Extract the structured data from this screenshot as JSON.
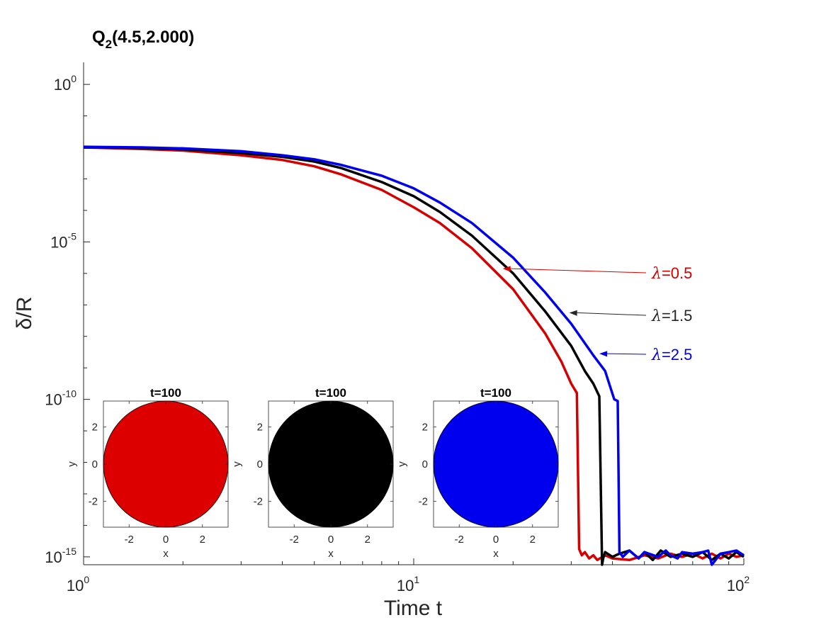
{
  "chart_data": {
    "type": "line",
    "title": "Q",
    "title_sub": "2",
    "title_rest": "(4.5,2.000)",
    "xlabel": "Time t",
    "ylabel": "δ/R",
    "xscale": "log",
    "yscale": "log",
    "xlim": [
      1,
      100
    ],
    "ylim_exp": [
      -15.25,
      0.7
    ],
    "x_ticks": [
      {
        "base": "10",
        "exp": "0",
        "value": 1
      },
      {
        "base": "10",
        "exp": "1",
        "value": 10
      },
      {
        "base": "10",
        "exp": "2",
        "value": 100
      }
    ],
    "y_ticks": [
      {
        "base": "10",
        "exp": "0",
        "value": 0
      },
      {
        "base": "10",
        "exp": "-5",
        "value": -5
      },
      {
        "base": "10",
        "exp": "-10",
        "value": -10
      },
      {
        "base": "10",
        "exp": "-15",
        "value": -15
      }
    ],
    "series": [
      {
        "name": "λ=0.5",
        "color": "#d40000",
        "x": [
          1,
          1.5,
          2,
          3,
          4,
          5,
          6,
          8,
          10,
          12,
          15,
          20,
          25,
          28,
          30,
          31.2,
          31.7,
          32.3,
          33,
          34,
          35,
          36,
          38,
          40,
          45,
          50,
          55,
          60,
          65,
          70,
          75,
          80,
          85,
          90,
          95,
          100
        ],
        "log10y": [
          -2.0,
          -2.05,
          -2.1,
          -2.25,
          -2.4,
          -2.6,
          -2.85,
          -3.35,
          -3.9,
          -4.4,
          -5.2,
          -6.5,
          -7.9,
          -8.8,
          -9.5,
          -9.8,
          -14.75,
          -14.95,
          -14.85,
          -15.05,
          -14.95,
          -15.1,
          -14.95,
          -15.05,
          -15.1,
          -14.95,
          -15.05,
          -14.9,
          -15.0,
          -14.9,
          -15.05,
          -14.9,
          -15.05,
          -14.9,
          -15.0,
          -14.95
        ]
      },
      {
        "name": "λ=1.5",
        "color": "#000000",
        "x": [
          1,
          1.5,
          2,
          3,
          4,
          5,
          6,
          8,
          10,
          12,
          15,
          20,
          25,
          30,
          33,
          35,
          36.5,
          37.2,
          37.5,
          38,
          40,
          42,
          45,
          48,
          50,
          53,
          56,
          60,
          65,
          70,
          75,
          80,
          85,
          90,
          95,
          100
        ],
        "log10y": [
          -2.0,
          -2.02,
          -2.06,
          -2.18,
          -2.3,
          -2.45,
          -2.65,
          -3.1,
          -3.55,
          -4.05,
          -4.8,
          -6.0,
          -7.2,
          -8.3,
          -9.1,
          -9.5,
          -9.9,
          -15.25,
          -15.05,
          -14.85,
          -15.0,
          -14.9,
          -14.8,
          -15.05,
          -14.85,
          -15.1,
          -14.8,
          -15.0,
          -14.9,
          -15.0,
          -14.85,
          -15.1,
          -14.9,
          -15.05,
          -14.85,
          -15.0
        ]
      },
      {
        "name": "λ=2.5",
        "color": "#0000ee",
        "x": [
          1,
          1.5,
          2,
          3,
          4,
          5,
          6,
          8,
          10,
          12,
          15,
          20,
          25,
          30,
          35,
          38,
          40.5,
          41.5,
          42,
          43,
          45,
          48,
          50,
          55,
          58,
          60,
          63,
          65,
          70,
          75,
          78,
          80,
          85,
          90,
          95,
          100
        ],
        "log10y": [
          -1.98,
          -2.0,
          -2.03,
          -2.12,
          -2.25,
          -2.38,
          -2.55,
          -2.9,
          -3.3,
          -3.75,
          -4.4,
          -5.5,
          -6.6,
          -7.6,
          -8.6,
          -9.1,
          -10.0,
          -10.05,
          -14.85,
          -15.0,
          -14.8,
          -15.05,
          -14.85,
          -15.0,
          -14.8,
          -14.95,
          -15.05,
          -14.85,
          -14.9,
          -14.85,
          -14.8,
          -15.25,
          -14.9,
          -14.85,
          -14.8,
          -14.95
        ]
      }
    ],
    "annotations": [
      {
        "text_sym": "λ",
        "text_rest": "=0.5",
        "color": "#d40000",
        "target_x": 18.6,
        "target_log10y": -5.85
      },
      {
        "text_sym": "λ",
        "text_rest": "=1.5",
        "color": "#262626",
        "target_x": 29.6,
        "target_log10y": -7.25
      },
      {
        "text_sym": "λ",
        "text_rest": "=2.5",
        "color": "#0000ee",
        "target_x": 36.5,
        "target_log10y": -8.55
      }
    ],
    "insets": [
      {
        "title": "t=100",
        "fill": "#dd0000",
        "xlabel": "x",
        "ylabel": "y",
        "x_ticks": [
          "-2",
          "0",
          "2"
        ],
        "y_ticks": [
          "2",
          "0",
          "-2"
        ]
      },
      {
        "title": "t=100",
        "fill": "#000000",
        "xlabel": "x",
        "ylabel": "y",
        "x_ticks": [
          "-2",
          "0",
          "2"
        ],
        "y_ticks": [
          "2",
          "0",
          "-2"
        ]
      },
      {
        "title": "t=100",
        "fill": "#0000ee",
        "xlabel": "x",
        "ylabel": "y",
        "x_ticks": [
          "-2",
          "0",
          "2"
        ],
        "y_ticks": [
          "2",
          "0",
          "-2"
        ]
      }
    ],
    "inset_axis_range": [
      -3.4,
      3.4
    ],
    "inset_tick_values": [
      -2,
      0,
      2
    ]
  }
}
